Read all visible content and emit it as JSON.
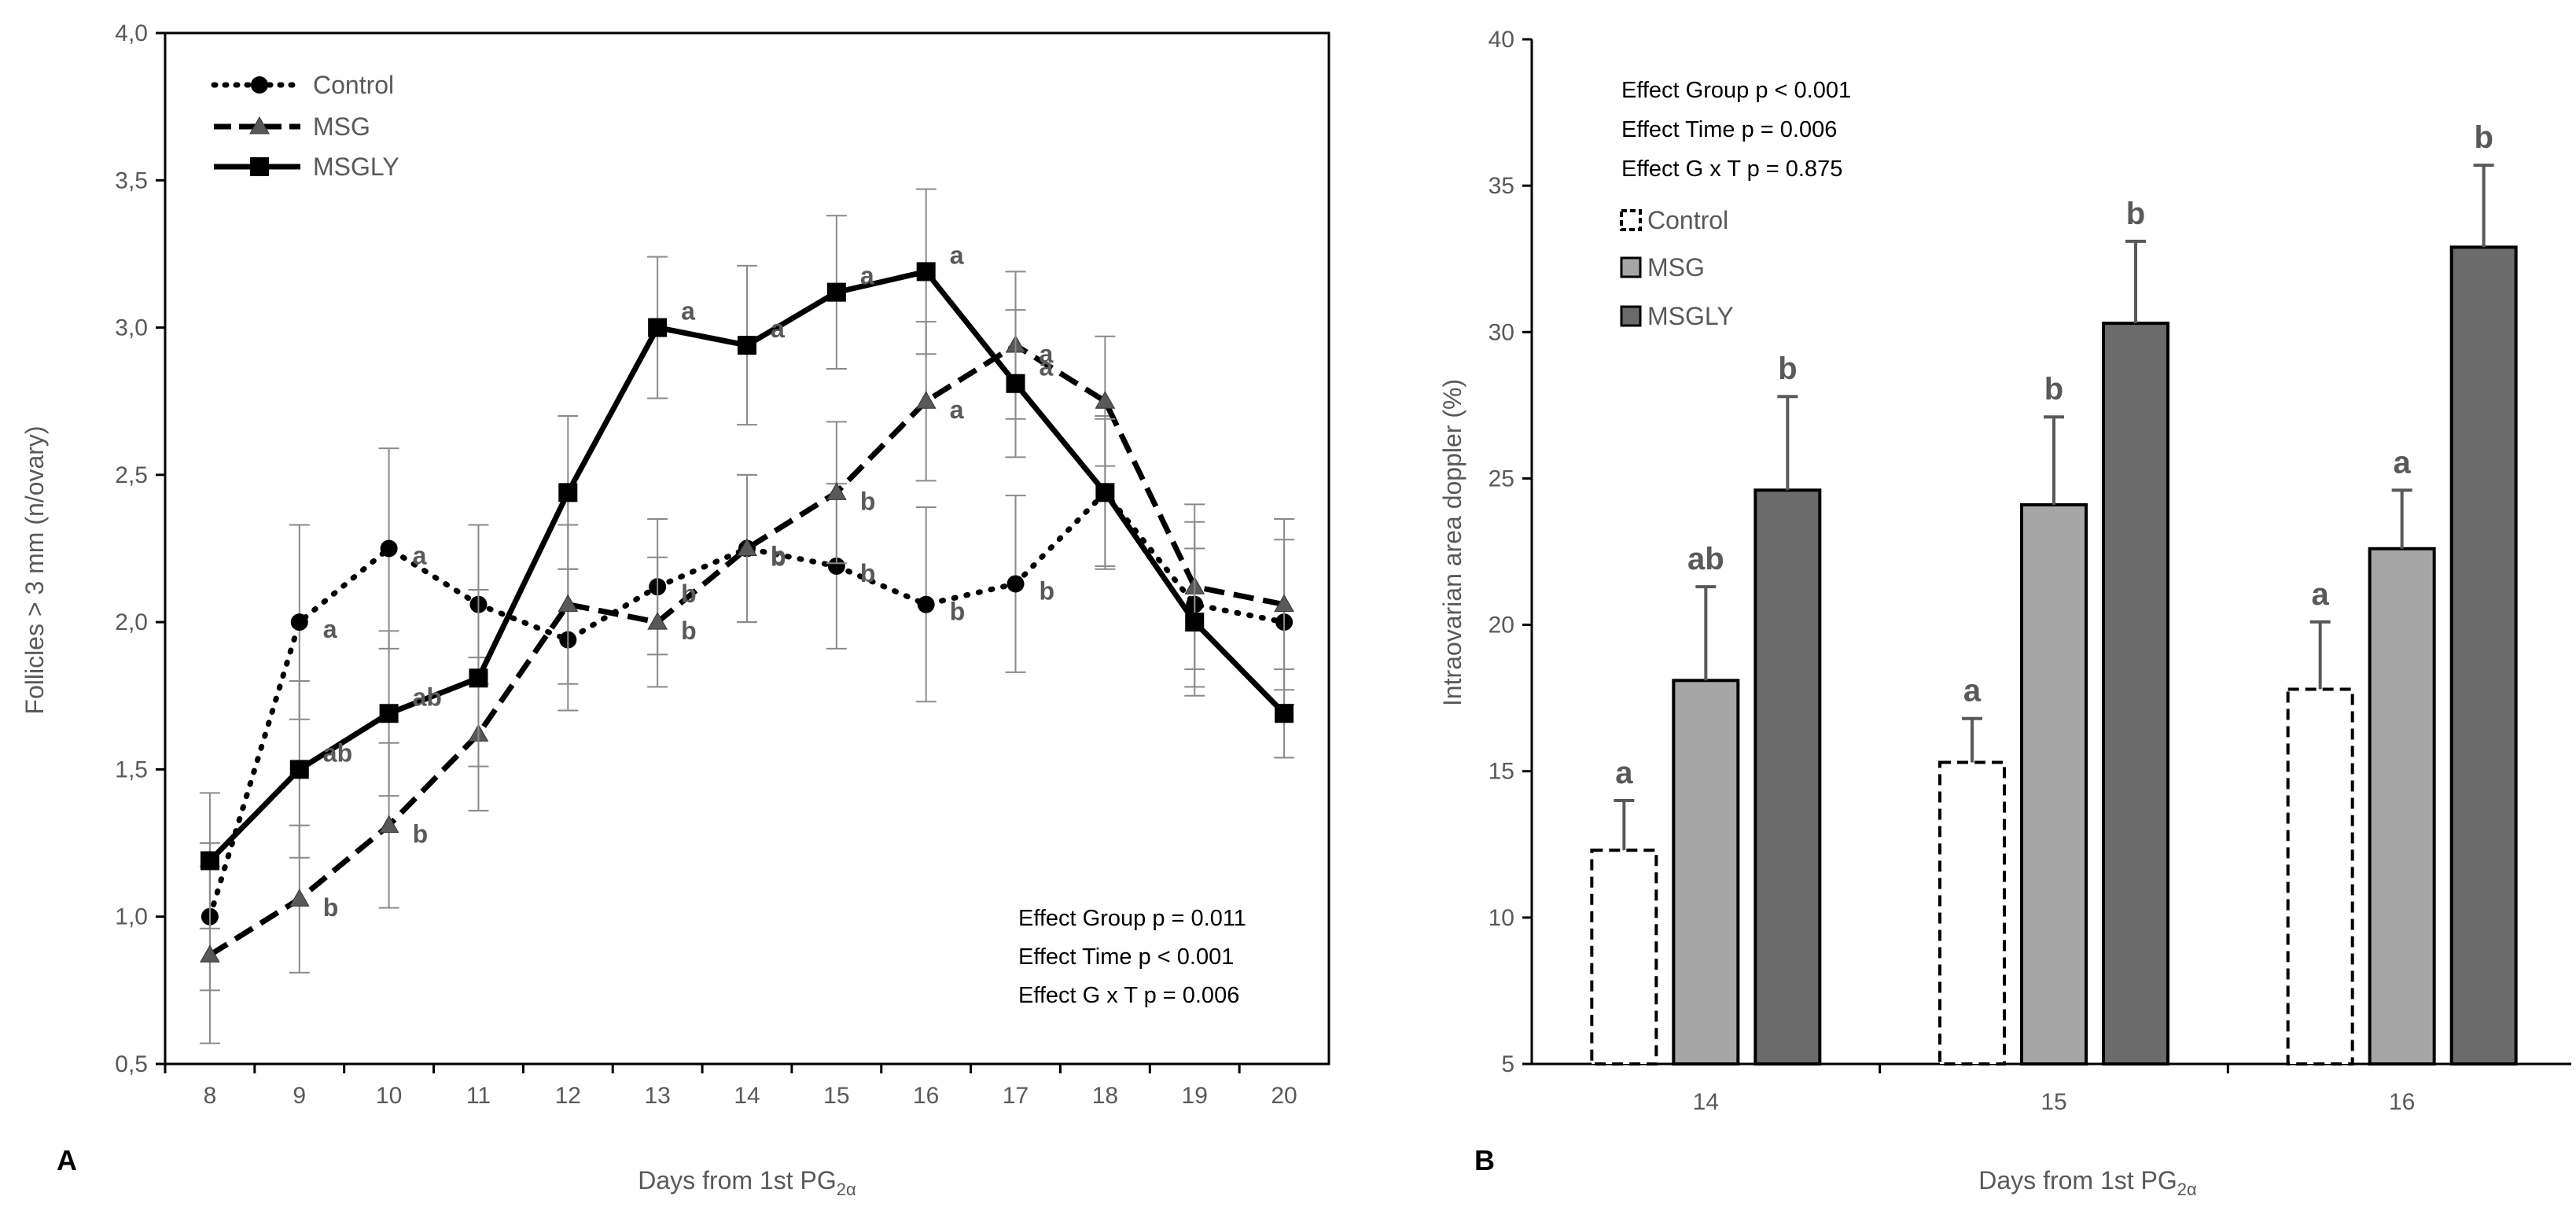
{
  "chart_data": [
    {
      "panel": "A",
      "type": "line",
      "ylabel": "Follicles > 3 mm (n/ovary)",
      "xlabel": "Days from 1st PG",
      "xlabel_sub": "2α",
      "x": [
        8,
        9,
        10,
        11,
        12,
        13,
        14,
        15,
        16,
        17,
        18,
        19,
        20
      ],
      "ylim": [
        0.5,
        4.0
      ],
      "yticks": [
        "0,5",
        "1,0",
        "1,5",
        "2,0",
        "2,5",
        "3,0",
        "3,5",
        "4,0"
      ],
      "ytick_values": [
        0.5,
        1.0,
        1.5,
        2.0,
        2.5,
        3.0,
        3.5,
        4.0
      ],
      "legend_position": "top-left",
      "series": [
        {
          "name": "Control",
          "style": "dotted",
          "marker": "circle",
          "values": [
            1.0,
            2.0,
            2.25,
            2.06,
            1.94,
            2.12,
            2.25,
            2.19,
            2.06,
            2.13,
            2.44,
            2.06,
            2.0
          ],
          "errors": [
            0.25,
            0.33,
            0.34,
            0.27,
            0.24,
            0.23,
            0.25,
            0.28,
            0.33,
            0.3,
            0.26,
            0.28,
            0.28
          ],
          "labels": [
            "",
            "a",
            "a",
            "",
            "",
            "b",
            "b",
            "b",
            "b",
            "b",
            "",
            "",
            ""
          ]
        },
        {
          "name": "MSG",
          "style": "dashed",
          "marker": "triangle",
          "values": [
            0.87,
            1.06,
            1.31,
            1.62,
            2.06,
            2.0,
            2.25,
            2.44,
            2.75,
            2.94,
            2.75,
            2.12,
            2.06
          ],
          "errors": [
            0.3,
            0.25,
            0.28,
            0.26,
            0.27,
            0.22,
            0.25,
            0.24,
            0.27,
            0.25,
            0.22,
            0.28,
            0.29
          ],
          "labels": [
            "",
            "b",
            "b",
            "",
            "",
            "b",
            "b",
            "b",
            "a",
            "a",
            "",
            "",
            ""
          ]
        },
        {
          "name": "MSGLY",
          "style": "solid",
          "marker": "square",
          "values": [
            1.19,
            1.5,
            1.69,
            1.81,
            2.44,
            3.0,
            2.94,
            3.12,
            3.19,
            2.81,
            2.44,
            2.0,
            1.69
          ],
          "errors": [
            0.23,
            0.3,
            0.28,
            0.3,
            0.26,
            0.24,
            0.27,
            0.26,
            0.28,
            0.25,
            0.25,
            0.25,
            0.15
          ],
          "labels": [
            "",
            "ab",
            "ab",
            "",
            "",
            "a",
            "a",
            "a",
            "a",
            "a",
            "",
            "",
            ""
          ]
        }
      ],
      "annotations": [
        "Effect Group p = 0.011",
        "Effect Time p < 0.001",
        "Effect G x T p = 0.006"
      ]
    },
    {
      "panel": "B",
      "type": "bar",
      "ylabel": "Intraovarian area doppler  (%)",
      "xlabel": "Days from 1st PG",
      "xlabel_sub": "2α",
      "categories": [
        "14",
        "15",
        "16"
      ],
      "ylim": [
        5,
        40
      ],
      "yticks": [
        "5",
        "10",
        "15",
        "20",
        "25",
        "30",
        "35",
        "40"
      ],
      "ytick_values": [
        5,
        10,
        15,
        20,
        25,
        30,
        35,
        40
      ],
      "legend_position": "top-left",
      "series": [
        {
          "name": "Control",
          "fill": "#ffffff",
          "style": "dashed",
          "values": [
            12.3,
            15.3,
            17.8
          ],
          "errors": [
            1.7,
            1.5,
            2.3
          ],
          "labels": [
            "a",
            "a",
            "a"
          ]
        },
        {
          "name": "MSG",
          "fill": "#a6a6a6",
          "style": "solid",
          "values": [
            18.1,
            24.1,
            22.6
          ],
          "errors": [
            3.2,
            3.0,
            2.0
          ],
          "labels": [
            "ab",
            "b",
            "a"
          ]
        },
        {
          "name": "MSGLY",
          "fill": "#6b6b6b",
          "style": "solid",
          "values": [
            24.6,
            30.3,
            32.9
          ],
          "errors": [
            3.2,
            2.8,
            2.8
          ],
          "labels": [
            "b",
            "b",
            "b"
          ]
        }
      ],
      "annotations": [
        "Effect Group p < 0.001",
        "Effect Time p = 0.006",
        "Effect G x T p = 0.875"
      ]
    }
  ]
}
